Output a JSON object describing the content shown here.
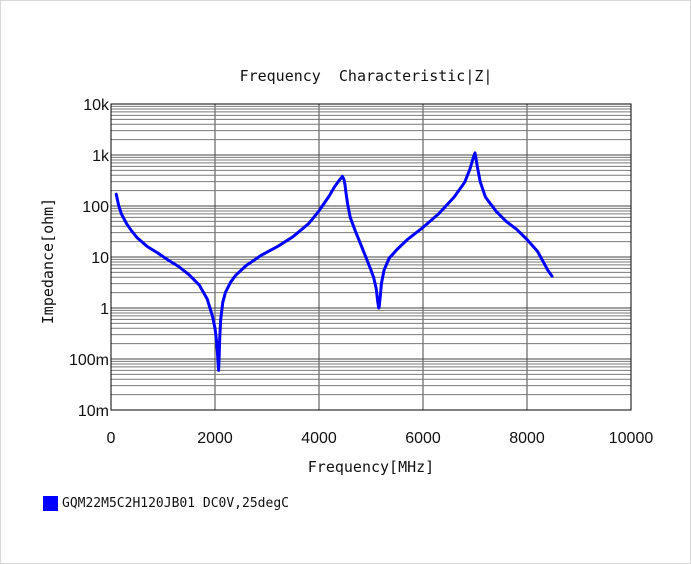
{
  "chart_data": {
    "type": "line",
    "title": "Frequency  Characteristic|Z|",
    "xlabel": "Frequency[MHz]",
    "ylabel": "Impedance[ohm]",
    "xlim": [
      0,
      10000
    ],
    "ylim": [
      0.01,
      10000
    ],
    "yscale": "log",
    "grid": true,
    "x_ticks": [
      "0",
      "2000",
      "4000",
      "6000",
      "8000",
      "10000"
    ],
    "y_ticks": [
      "10m",
      "100m",
      "1",
      "10",
      "100",
      "1k",
      "10k"
    ],
    "legend_position": "bottom-left",
    "series": [
      {
        "name": "GQM22M5C2H120JB01 DC0V,25degC",
        "color": "#0000ff",
        "x": [
          100,
          150,
          200,
          300,
          400,
          500,
          700,
          900,
          1100,
          1300,
          1500,
          1700,
          1850,
          1950,
          2000,
          2030,
          2050,
          2070,
          2080,
          2090,
          2110,
          2150,
          2200,
          2300,
          2400,
          2600,
          2900,
          3200,
          3500,
          3800,
          4000,
          4200,
          4300,
          4400,
          4450,
          4480,
          4500,
          4520,
          4550,
          4600,
          4700,
          4800,
          4900,
          5000,
          5050,
          5100,
          5130,
          5150,
          5160,
          5180,
          5200,
          5250,
          5350,
          5500,
          5700,
          6000,
          6300,
          6600,
          6800,
          6900,
          6970,
          7000,
          7020,
          7050,
          7100,
          7200,
          7400,
          7600,
          7800,
          8000,
          8200,
          8300,
          8400,
          8480
        ],
        "y": [
          170,
          100,
          70,
          45,
          32,
          24,
          16,
          12,
          8.7,
          6.5,
          4.5,
          2.8,
          1.5,
          0.7,
          0.4,
          0.22,
          0.12,
          0.06,
          0.12,
          0.25,
          0.6,
          1.3,
          2.0,
          3.2,
          4.4,
          6.8,
          11,
          16,
          25,
          45,
          80,
          160,
          240,
          330,
          380,
          330,
          260,
          180,
          110,
          60,
          32,
          18,
          10,
          5.5,
          4.0,
          2.4,
          1.3,
          1.0,
          1.1,
          1.8,
          3.0,
          5.5,
          9.5,
          14,
          22,
          38,
          70,
          150,
          290,
          520,
          900,
          1100,
          850,
          550,
          300,
          150,
          80,
          50,
          35,
          22,
          13,
          8.5,
          5.5,
          4.2
        ]
      }
    ]
  }
}
